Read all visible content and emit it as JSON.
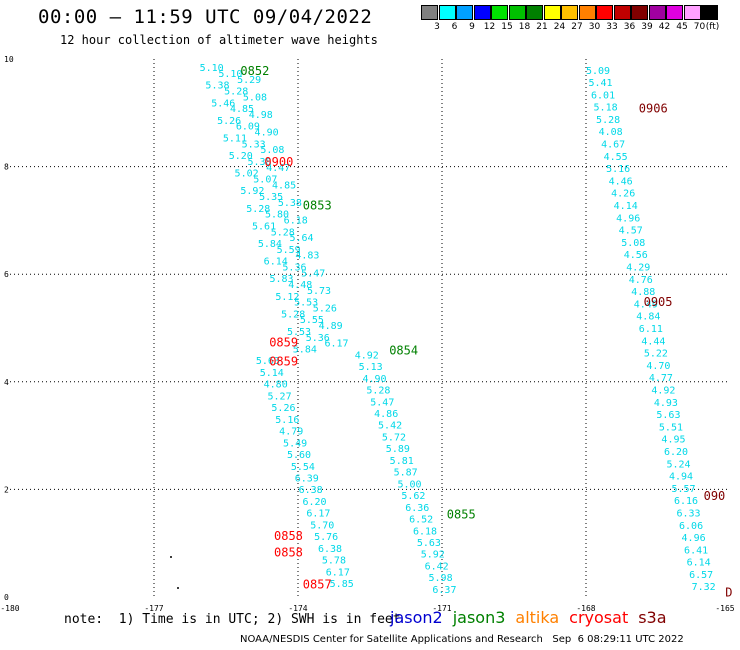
{
  "header": {
    "title": "00:00 – 11:59 UTC 09/04/2022",
    "subtitle": "12 hour collection of altimeter wave heights"
  },
  "legend": {
    "unit": "(ft)",
    "bins": [
      {
        "label": "3",
        "color": "#808080"
      },
      {
        "label": "6",
        "color": "#00ffff"
      },
      {
        "label": "9",
        "color": "#00a0ff"
      },
      {
        "label": "12",
        "color": "#0000ff"
      },
      {
        "label": "15",
        "color": "#00e000"
      },
      {
        "label": "18",
        "color": "#00c000"
      },
      {
        "label": "21",
        "color": "#008000"
      },
      {
        "label": "24",
        "color": "#ffff00"
      },
      {
        "label": "27",
        "color": "#ffc000"
      },
      {
        "label": "30",
        "color": "#ff8000"
      },
      {
        "label": "33",
        "color": "#ff0000"
      },
      {
        "label": "36",
        "color": "#c00000"
      },
      {
        "label": "39",
        "color": "#800000"
      },
      {
        "label": "42",
        "color": "#a000a0"
      },
      {
        "label": "45",
        "color": "#e000e0"
      },
      {
        "label": "70",
        "color": "#ffa0ff"
      },
      {
        "label": "",
        "color": "#000000"
      }
    ]
  },
  "map": {
    "lon_range": [
      -180,
      -165
    ],
    "lat_range": [
      0,
      10
    ],
    "x_ticks": [
      "-180",
      "-177",
      "-174",
      "-171",
      "-168",
      "-165"
    ],
    "y_ticks": [
      "0",
      "2",
      "4",
      "6",
      "8",
      "10"
    ],
    "colors": {
      "cyan": "#00d8e8",
      "green": "#008000",
      "red": "#ff0000",
      "darkred": "#800000",
      "black": "#000000"
    },
    "track_a": {
      "heights": [
        "5.10",
        "5.10",
        "5.29",
        "5.38",
        "5.28",
        "5.08",
        "5.46",
        "4.85",
        "4.98",
        "5.26",
        "6.09",
        "4.90",
        "5.11",
        "5.33",
        "5.08",
        "5.20",
        "5.38",
        "4.47",
        "5.02",
        "5.07",
        "4.85",
        "5.92",
        "5.35",
        "5.38",
        "5.28",
        "5.80",
        "6.18",
        "5.61",
        "5.28",
        "5.64",
        "5.84",
        "5.59",
        "4.83",
        "6.14",
        "5.36",
        "5.47",
        "5.83",
        "4.48",
        "5.73",
        "5.12",
        "5.53",
        "5.26",
        "5.28",
        "5.55",
        "4.89",
        "5.53",
        "5.36",
        "6.17",
        "5.84",
        "4.92",
        "5.63",
        "5.13",
        "5.14",
        "4.90",
        "4.80",
        "5.28",
        "5.27",
        "5.47",
        "5.26",
        "4.86",
        "5.16",
        "5.42",
        "4.79",
        "5.72",
        "5.49",
        "5.89",
        "5.60",
        "5.81",
        "5.54",
        "5.87",
        "6.39",
        "5.00",
        "6.38",
        "5.62",
        "6.20",
        "6.36",
        "6.17",
        "6.52",
        "5.70",
        "6.18",
        "5.76",
        "5.63",
        "6.38",
        "5.92",
        "5.78",
        "6.42",
        "6.17",
        "5.98",
        "5.85",
        "6.37"
      ],
      "times": [
        {
          "label": "0852",
          "lat": 9.8,
          "lon": -175.2,
          "color": "green"
        },
        {
          "label": "0900",
          "lat": 8.1,
          "lon": -174.7,
          "color": "red"
        },
        {
          "label": "0853",
          "lat": 7.3,
          "lon": -173.9,
          "color": "green"
        },
        {
          "label": "0859",
          "lat": 4.75,
          "lon": -174.6,
          "color": "red"
        },
        {
          "label": "0854",
          "lat": 4.6,
          "lon": -172.1,
          "color": "green"
        },
        {
          "label": "0859",
          "lat": 4.4,
          "lon": -174.6,
          "color": "red"
        },
        {
          "label": "0855",
          "lat": 1.55,
          "lon": -170.9,
          "color": "green"
        },
        {
          "label": "0858",
          "lat": 1.15,
          "lon": -174.5,
          "color": "red"
        },
        {
          "label": "0858",
          "lat": 0.85,
          "lon": -174.5,
          "color": "red"
        },
        {
          "label": "0857",
          "lat": 0.25,
          "lon": -173.9,
          "color": "red"
        }
      ]
    },
    "track_b": {
      "heights": [
        "5.09",
        "5.41",
        "6.01",
        "5.18",
        "5.28",
        "4.08",
        "4.67",
        "4.55",
        "5.16",
        "4.46",
        "4.26",
        "4.14",
        "4.96",
        "4.57",
        "5.08",
        "4.56",
        "4.29",
        "4.76",
        "4.88",
        "4.49",
        "4.84",
        "6.11",
        "4.44",
        "5.22",
        "4.70",
        "4.77",
        "4.92",
        "4.93",
        "5.63",
        "5.51",
        "4.95",
        "6.20",
        "5.24",
        "4.94",
        "5.57",
        "6.16",
        "6.33",
        "6.06",
        "4.96",
        "6.41",
        "6.14",
        "6.57",
        "7.32"
      ],
      "times": [
        {
          "label": "0906",
          "lat": 9.1,
          "lon": -166.9,
          "color": "darkred"
        },
        {
          "label": "0905",
          "lat": 5.5,
          "lon": -166.8,
          "color": "darkred"
        },
        {
          "label": "090",
          "lat": 1.9,
          "lon": -165.55,
          "color": "darkred"
        },
        {
          "label": "D",
          "lat": 0.1,
          "lon": -165.1,
          "color": "darkred"
        }
      ]
    }
  },
  "footer": {
    "note": "note:  1) Time is in UTC; 2) SWH is in feet",
    "satellites": [
      {
        "name": "jason2",
        "color": "#0000d0"
      },
      {
        "name": "jason3",
        "color": "#008000"
      },
      {
        "name": "altika",
        "color": "#ff8000"
      },
      {
        "name": "cryosat",
        "color": "#ff0000"
      },
      {
        "name": "s3a",
        "color": "#800000"
      }
    ],
    "credit": "NOAA/NESDIS Center for Satellite Applications and Research   Sep  6 08:29:11 UTC 2022"
  }
}
